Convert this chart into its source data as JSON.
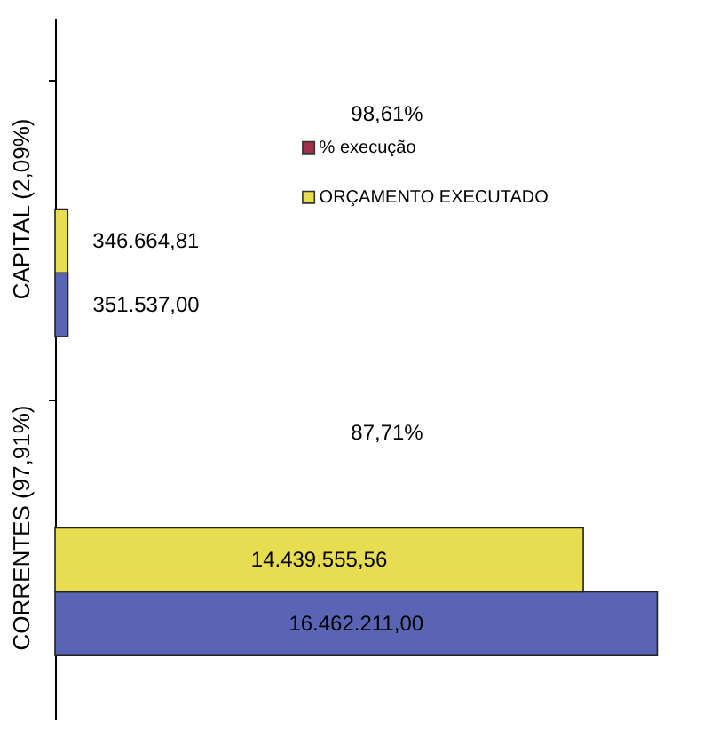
{
  "chart_data": {
    "type": "bar",
    "orientation": "horizontal",
    "categories": [
      "CAPITAL (2,09%)",
      "CORRENTES (97,91%)"
    ],
    "series": [
      {
        "color": "#5a64b4",
        "values": [
          351537.0,
          16462211.0
        ],
        "value_labels": [
          "351.537,00",
          "16.462.211,00"
        ]
      },
      {
        "name": "ORÇAMENTO EXECUTADO",
        "color": "#e8dc50",
        "values": [
          346664.81,
          14439555.56
        ],
        "value_labels": [
          "346.664,81",
          "14.439.555,56"
        ]
      },
      {
        "name": "% execução",
        "color": "#a0304a",
        "values": [
          null,
          null
        ],
        "value_labels": [
          "98,61%",
          "87,71%"
        ]
      }
    ],
    "xlim": [
      0,
      16500000
    ],
    "tick_labels": "y",
    "grid": false,
    "legend": "top right"
  }
}
